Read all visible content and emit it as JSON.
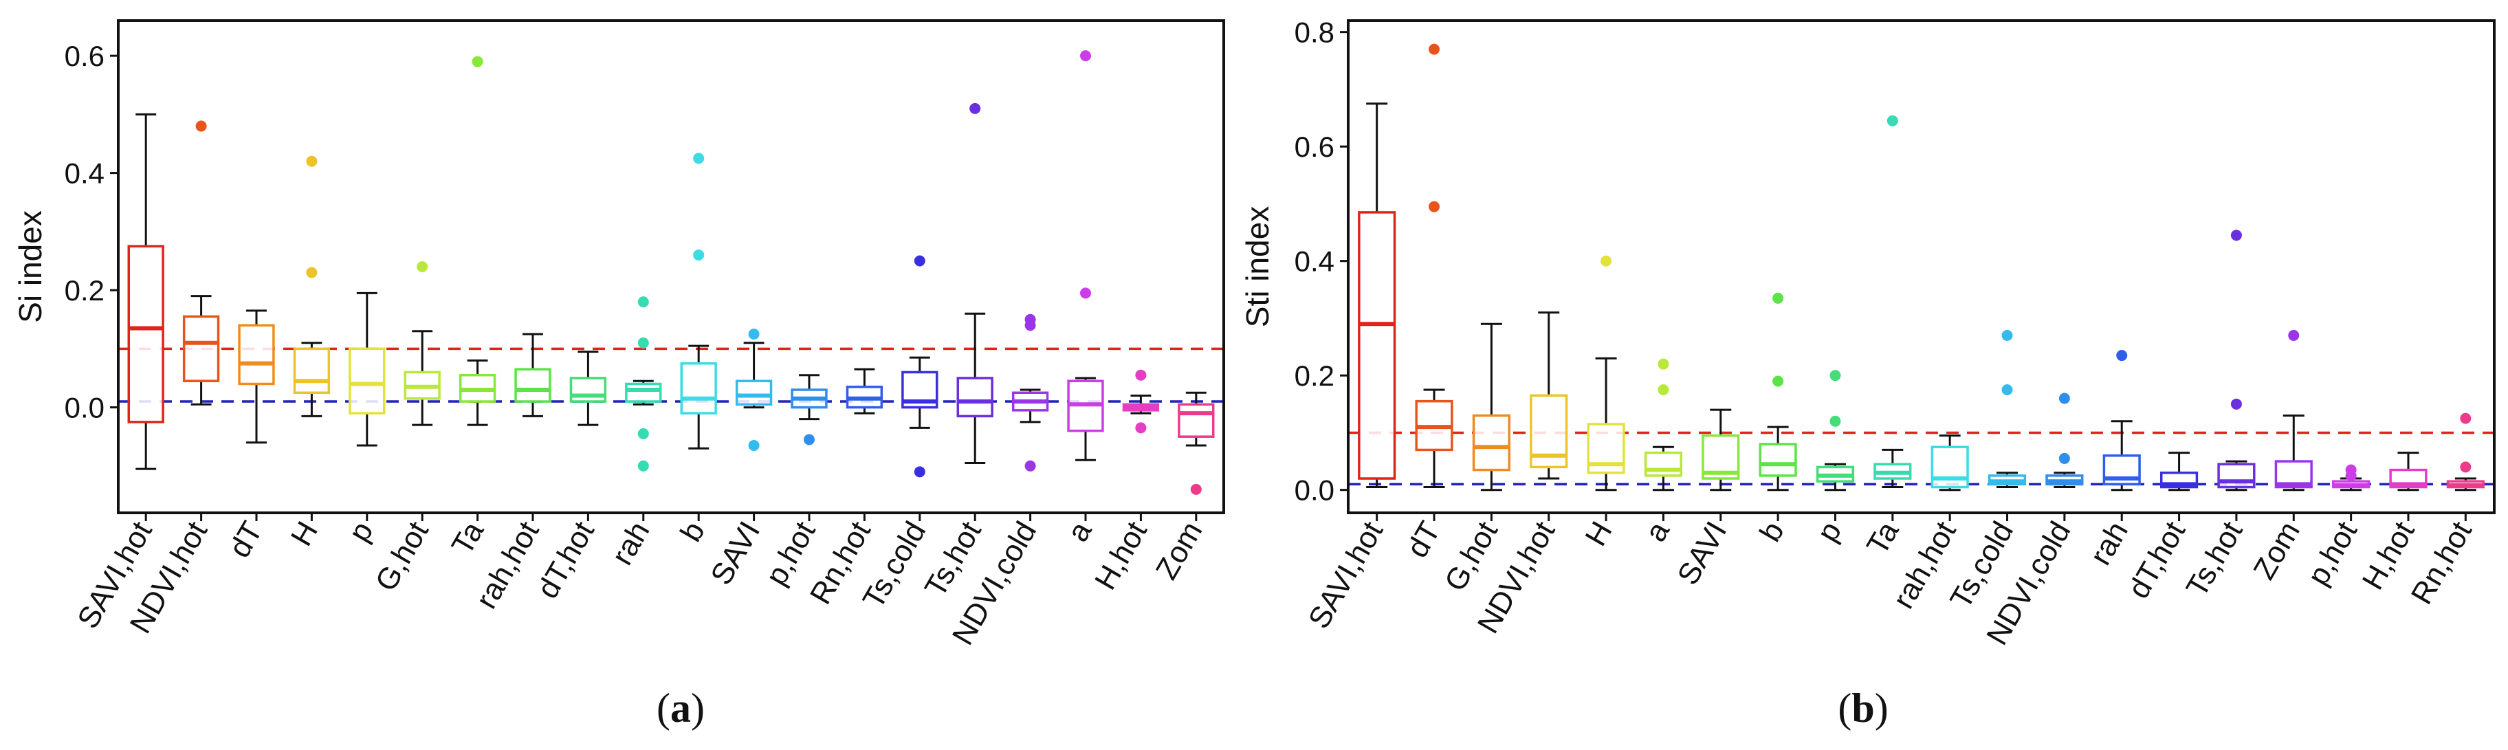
{
  "chart_data": [
    {
      "type": "box",
      "panel_label": "a",
      "ylabel": "Si index",
      "ylim": [
        -0.18,
        0.66
      ],
      "yticks": [
        0.0,
        0.2,
        0.4,
        0.6
      ],
      "ytick_labels": [
        "0.0",
        "0.2",
        "0.4",
        "0.6"
      ],
      "reference_lines": [
        {
          "y": 0.1,
          "color": "#e0241c",
          "style": "dashed"
        },
        {
          "y": 0.01,
          "color": "#2222bb",
          "style": "dashed"
        }
      ],
      "categories": [
        "SAVI,hot",
        "NDVI,hot",
        "dT",
        "H",
        "p",
        "G,hot",
        "Ta",
        "rah,hot",
        "dT,hot",
        "rah",
        "b",
        "SAVI",
        "p,hot",
        "Rn,hot",
        "Ts,cold",
        "Ts,hot",
        "NDVI,cold",
        "a",
        "H,hot",
        "Zom"
      ],
      "colors": [
        "#e0241c",
        "#e8541a",
        "#ef8b1f",
        "#ecc42a",
        "#e3e23a",
        "#b9e83a",
        "#86e838",
        "#5ee24a",
        "#44dd77",
        "#36dbb2",
        "#3ddbe6",
        "#33bbee",
        "#2f8ded",
        "#2f5ee8",
        "#3a2fe0",
        "#6a2fe0",
        "#9a36e8",
        "#cc3ce8",
        "#e63cc6",
        "#ee3a8a"
      ],
      "boxes": [
        {
          "whisker_low": -0.105,
          "q1": -0.025,
          "median": 0.135,
          "q3": 0.275,
          "whisker_high": 0.5,
          "outliers": []
        },
        {
          "whisker_low": 0.005,
          "q1": 0.045,
          "median": 0.11,
          "q3": 0.155,
          "whisker_high": 0.19,
          "outliers": [
            0.48
          ]
        },
        {
          "whisker_low": -0.06,
          "q1": 0.04,
          "median": 0.075,
          "q3": 0.14,
          "whisker_high": 0.165,
          "outliers": []
        },
        {
          "whisker_low": -0.015,
          "q1": 0.025,
          "median": 0.045,
          "q3": 0.1,
          "whisker_high": 0.11,
          "outliers": [
            0.23,
            0.42
          ]
        },
        {
          "whisker_low": -0.065,
          "q1": -0.01,
          "median": 0.04,
          "q3": 0.1,
          "whisker_high": 0.195,
          "outliers": []
        },
        {
          "whisker_low": -0.03,
          "q1": 0.015,
          "median": 0.035,
          "q3": 0.06,
          "whisker_high": 0.13,
          "outliers": [
            0.24
          ]
        },
        {
          "whisker_low": -0.03,
          "q1": 0.01,
          "median": 0.03,
          "q3": 0.055,
          "whisker_high": 0.08,
          "outliers": [
            0.59
          ]
        },
        {
          "whisker_low": -0.015,
          "q1": 0.01,
          "median": 0.03,
          "q3": 0.065,
          "whisker_high": 0.125,
          "outliers": []
        },
        {
          "whisker_low": -0.03,
          "q1": 0.01,
          "median": 0.02,
          "q3": 0.05,
          "whisker_high": 0.095,
          "outliers": []
        },
        {
          "whisker_low": 0.005,
          "q1": 0.01,
          "median": 0.03,
          "q3": 0.04,
          "whisker_high": 0.045,
          "outliers": [
            0.18,
            0.11,
            -0.045,
            -0.1
          ]
        },
        {
          "whisker_low": -0.07,
          "q1": -0.01,
          "median": 0.015,
          "q3": 0.075,
          "whisker_high": 0.105,
          "outliers": [
            0.26,
            0.425
          ]
        },
        {
          "whisker_low": 0.0,
          "q1": 0.005,
          "median": 0.02,
          "q3": 0.045,
          "whisker_high": 0.11,
          "outliers": [
            0.125,
            -0.065
          ]
        },
        {
          "whisker_low": -0.02,
          "q1": 0.0,
          "median": 0.015,
          "q3": 0.03,
          "whisker_high": 0.055,
          "outliers": [
            -0.055
          ]
        },
        {
          "whisker_low": -0.01,
          "q1": 0.0,
          "median": 0.015,
          "q3": 0.035,
          "whisker_high": 0.065,
          "outliers": []
        },
        {
          "whisker_low": -0.035,
          "q1": 0.0,
          "median": 0.01,
          "q3": 0.06,
          "whisker_high": 0.085,
          "outliers": [
            0.25,
            -0.11
          ]
        },
        {
          "whisker_low": -0.095,
          "q1": -0.015,
          "median": 0.01,
          "q3": 0.05,
          "whisker_high": 0.16,
          "outliers": [
            0.51
          ]
        },
        {
          "whisker_low": -0.025,
          "q1": -0.005,
          "median": 0.01,
          "q3": 0.025,
          "whisker_high": 0.03,
          "outliers": [
            0.15,
            0.14,
            -0.1
          ]
        },
        {
          "whisker_low": -0.09,
          "q1": -0.04,
          "median": 0.005,
          "q3": 0.045,
          "whisker_high": 0.05,
          "outliers": [
            0.6,
            0.195
          ]
        },
        {
          "whisker_low": -0.01,
          "q1": -0.005,
          "median": 0.0,
          "q3": 0.005,
          "whisker_high": 0.02,
          "outliers": [
            0.055,
            -0.035
          ]
        },
        {
          "whisker_low": -0.065,
          "q1": -0.05,
          "median": -0.01,
          "q3": 0.005,
          "whisker_high": 0.025,
          "outliers": [
            -0.14
          ]
        }
      ]
    },
    {
      "type": "box",
      "panel_label": "b",
      "ylabel": "Sti index",
      "ylim": [
        -0.04,
        0.82
      ],
      "yticks": [
        0.0,
        0.2,
        0.4,
        0.6,
        0.8
      ],
      "ytick_labels": [
        "0.0",
        "0.2",
        "0.4",
        "0.6",
        "0.8"
      ],
      "reference_lines": [
        {
          "y": 0.1,
          "color": "#e0241c",
          "style": "dashed"
        },
        {
          "y": 0.01,
          "color": "#2222bb",
          "style": "dashed"
        }
      ],
      "categories": [
        "SAVI,hot",
        "dT",
        "G,hot",
        "NDVI,hot",
        "H",
        "a",
        "SAVI",
        "b",
        "p",
        "Ta",
        "rah,hot",
        "Ts,cold",
        "NDVI,cold",
        "rah",
        "dT,hot",
        "Ts,hot",
        "Zom",
        "p,hot",
        "H,hot",
        "Rn,hot"
      ],
      "colors": [
        "#e0241c",
        "#e8541a",
        "#ef8b1f",
        "#ecc42a",
        "#e3e23a",
        "#b9e83a",
        "#86e838",
        "#5ee24a",
        "#44dd77",
        "#36dbb2",
        "#3ddbe6",
        "#33bbee",
        "#2f8ded",
        "#2f5ee8",
        "#3a2fe0",
        "#6a2fe0",
        "#9a36e8",
        "#cc3ce8",
        "#e63cc6",
        "#ee3a8a"
      ],
      "boxes": [
        {
          "whisker_low": 0.005,
          "q1": 0.02,
          "median": 0.29,
          "q3": 0.485,
          "whisker_high": 0.675,
          "outliers": []
        },
        {
          "whisker_low": 0.005,
          "q1": 0.07,
          "median": 0.11,
          "q3": 0.155,
          "whisker_high": 0.175,
          "outliers": [
            0.77,
            0.495
          ]
        },
        {
          "whisker_low": 0.0,
          "q1": 0.035,
          "median": 0.075,
          "q3": 0.13,
          "whisker_high": 0.29,
          "outliers": []
        },
        {
          "whisker_low": 0.02,
          "q1": 0.04,
          "median": 0.06,
          "q3": 0.165,
          "whisker_high": 0.31,
          "outliers": []
        },
        {
          "whisker_low": 0.0,
          "q1": 0.03,
          "median": 0.045,
          "q3": 0.115,
          "whisker_high": 0.23,
          "outliers": [
            0.4
          ]
        },
        {
          "whisker_low": 0.0,
          "q1": 0.025,
          "median": 0.035,
          "q3": 0.065,
          "whisker_high": 0.075,
          "outliers": [
            0.22,
            0.175
          ]
        },
        {
          "whisker_low": 0.0,
          "q1": 0.02,
          "median": 0.03,
          "q3": 0.095,
          "whisker_high": 0.14,
          "outliers": []
        },
        {
          "whisker_low": 0.0,
          "q1": 0.025,
          "median": 0.045,
          "q3": 0.08,
          "whisker_high": 0.11,
          "outliers": [
            0.335,
            0.19
          ]
        },
        {
          "whisker_low": 0.0,
          "q1": 0.015,
          "median": 0.025,
          "q3": 0.04,
          "whisker_high": 0.045,
          "outliers": [
            0.2,
            0.12
          ]
        },
        {
          "whisker_low": 0.005,
          "q1": 0.02,
          "median": 0.03,
          "q3": 0.045,
          "whisker_high": 0.07,
          "outliers": [
            0.645
          ]
        },
        {
          "whisker_low": 0.0,
          "q1": 0.005,
          "median": 0.02,
          "q3": 0.075,
          "whisker_high": 0.095,
          "outliers": []
        },
        {
          "whisker_low": 0.005,
          "q1": 0.01,
          "median": 0.015,
          "q3": 0.025,
          "whisker_high": 0.03,
          "outliers": [
            0.27,
            0.175
          ]
        },
        {
          "whisker_low": 0.005,
          "q1": 0.01,
          "median": 0.015,
          "q3": 0.025,
          "whisker_high": 0.03,
          "outliers": [
            0.16,
            0.055
          ]
        },
        {
          "whisker_low": 0.0,
          "q1": 0.01,
          "median": 0.02,
          "q3": 0.06,
          "whisker_high": 0.12,
          "outliers": [
            0.235
          ]
        },
        {
          "whisker_low": 0.0,
          "q1": 0.005,
          "median": 0.01,
          "q3": 0.03,
          "whisker_high": 0.065,
          "outliers": []
        },
        {
          "whisker_low": 0.0,
          "q1": 0.005,
          "median": 0.015,
          "q3": 0.045,
          "whisker_high": 0.05,
          "outliers": [
            0.445,
            0.15
          ]
        },
        {
          "whisker_low": 0.0,
          "q1": 0.005,
          "median": 0.01,
          "q3": 0.05,
          "whisker_high": 0.13,
          "outliers": [
            0.27
          ]
        },
        {
          "whisker_low": 0.0,
          "q1": 0.005,
          "median": 0.008,
          "q3": 0.015,
          "whisker_high": 0.02,
          "outliers": [
            0.035,
            0.025
          ]
        },
        {
          "whisker_low": 0.0,
          "q1": 0.005,
          "median": 0.01,
          "q3": 0.035,
          "whisker_high": 0.065,
          "outliers": []
        },
        {
          "whisker_low": 0.0,
          "q1": 0.005,
          "median": 0.008,
          "q3": 0.015,
          "whisker_high": 0.02,
          "outliers": [
            0.125,
            0.04
          ]
        }
      ]
    }
  ]
}
